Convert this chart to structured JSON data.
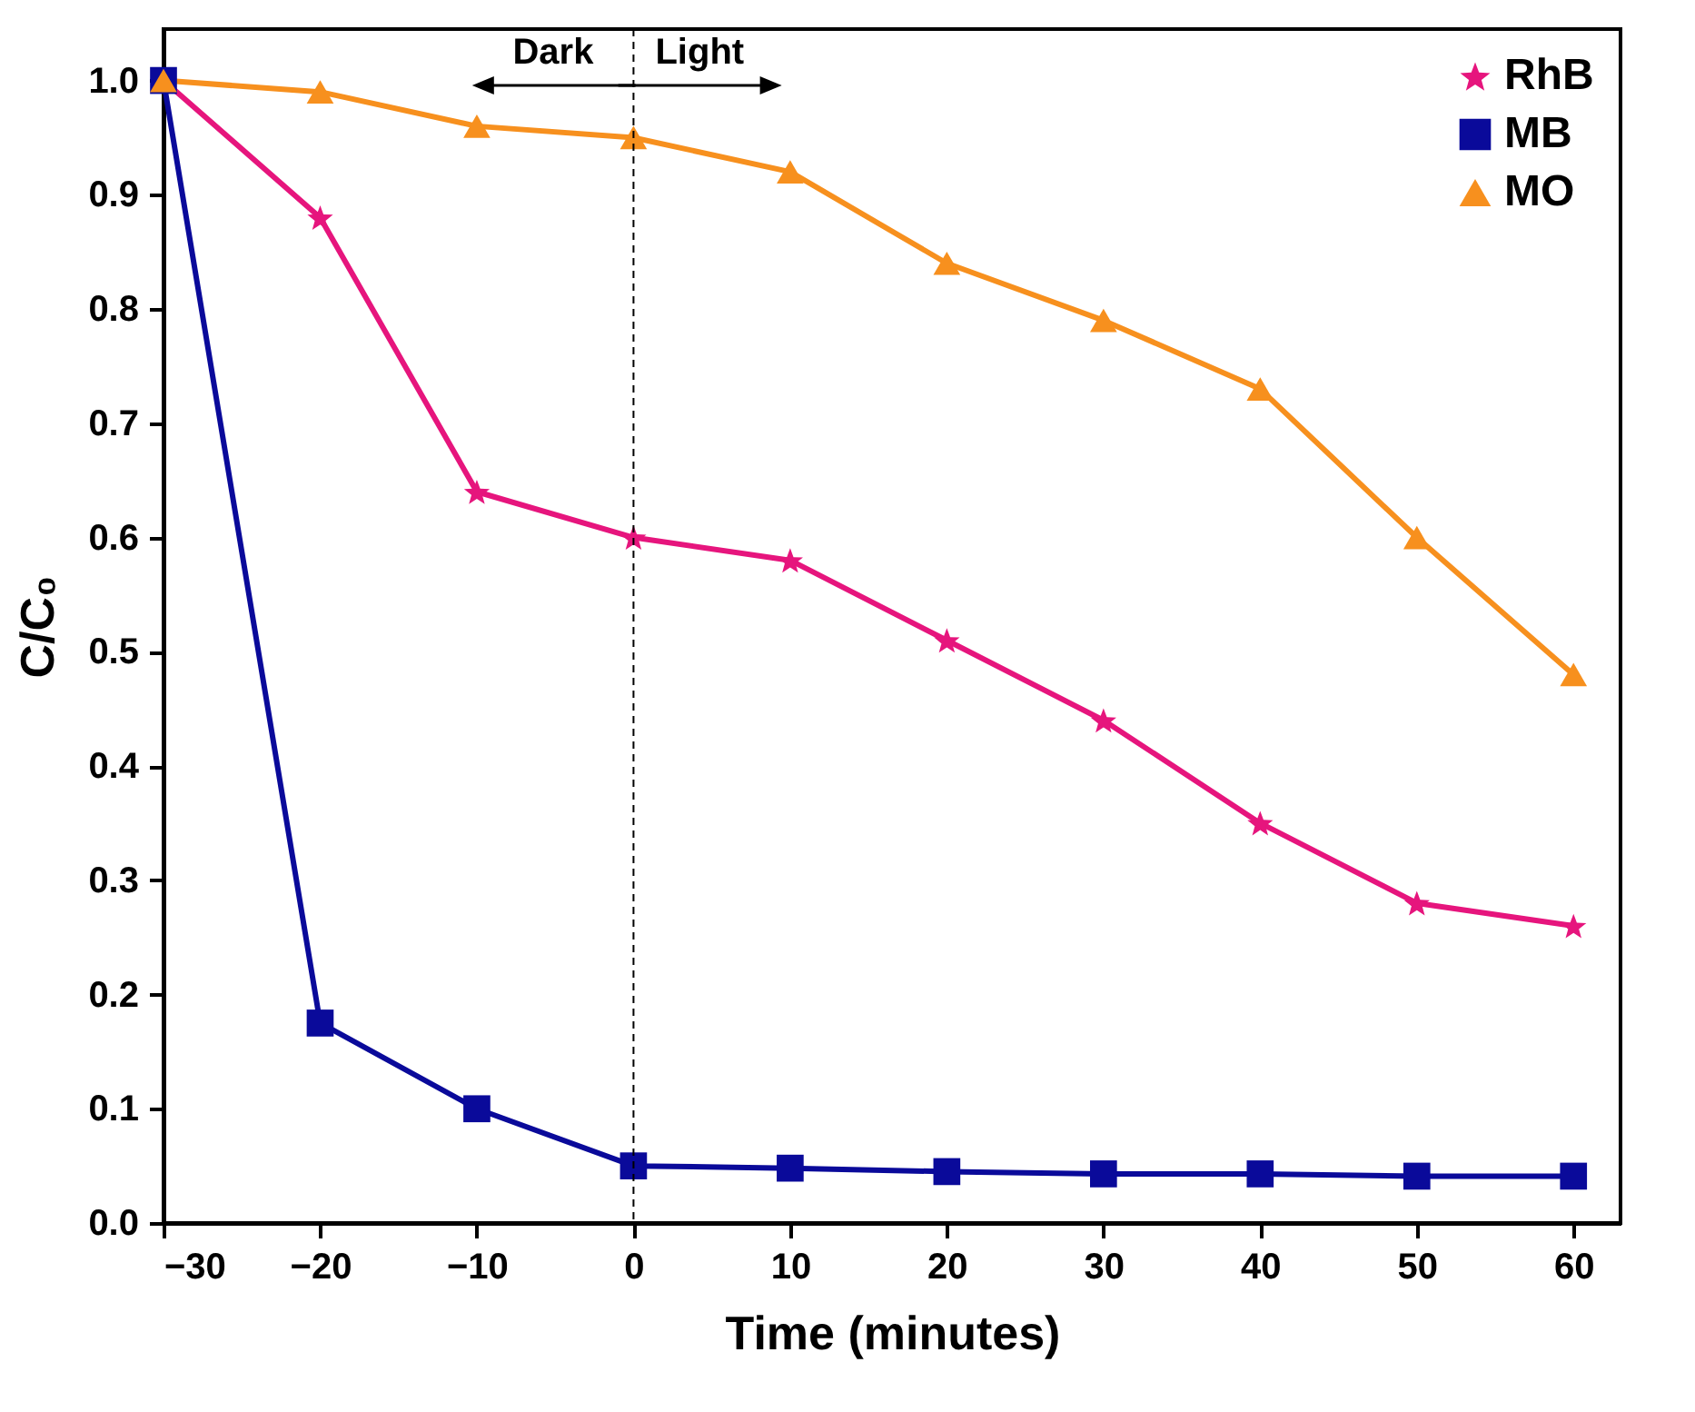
{
  "chart_data": {
    "type": "line",
    "xlabel": "Time (minutes)",
    "ylabel": "C/C₀",
    "x": [
      -30,
      -20,
      -10,
      0,
      10,
      20,
      30,
      40,
      50,
      60
    ],
    "series": [
      {
        "name": "RhB",
        "color": "#e6157d",
        "marker": "star",
        "values": [
          1.0,
          0.88,
          0.64,
          0.6,
          0.58,
          0.51,
          0.44,
          0.35,
          0.28,
          0.26
        ]
      },
      {
        "name": "MB",
        "color": "#0a0a9a",
        "marker": "square",
        "values": [
          1.0,
          0.175,
          0.1,
          0.05,
          0.048,
          0.045,
          0.043,
          0.043,
          0.041,
          0.041
        ]
      },
      {
        "name": "MO",
        "color": "#f7901e",
        "marker": "triangle",
        "values": [
          1.0,
          0.99,
          0.96,
          0.95,
          0.92,
          0.84,
          0.79,
          0.73,
          0.6,
          0.48
        ]
      }
    ],
    "xlim": [
      -30,
      63
    ],
    "ylim": [
      0,
      1.045
    ],
    "xticks": [
      {
        "value": -30,
        "label": "−30"
      },
      {
        "value": -20,
        "label": "−20"
      },
      {
        "value": -10,
        "label": "−10"
      },
      0,
      10,
      20,
      30,
      40,
      50,
      60
    ],
    "yticks": [
      {
        "value": 0,
        "label": "0.0"
      },
      {
        "value": 0.1,
        "label": "0.1"
      },
      {
        "value": 0.2,
        "label": "0.2"
      },
      {
        "value": 0.3,
        "label": "0.3"
      },
      {
        "value": 0.4,
        "label": "0.4"
      },
      {
        "value": 0.5,
        "label": "0.5"
      },
      {
        "value": 0.6,
        "label": "0.6"
      },
      {
        "value": 0.7,
        "label": "0.7"
      },
      {
        "value": 0.8,
        "label": "0.8"
      },
      {
        "value": 0.9,
        "label": "0.9"
      },
      {
        "value": 1.0,
        "label": "1.0"
      }
    ],
    "ref_lines": [
      {
        "axis": "x",
        "value": 0,
        "color": "#000000",
        "line_style": "dashed"
      }
    ],
    "annotations": [
      "Dark",
      "Light"
    ],
    "legend": "top right",
    "grid": false,
    "line_style": "solid"
  }
}
